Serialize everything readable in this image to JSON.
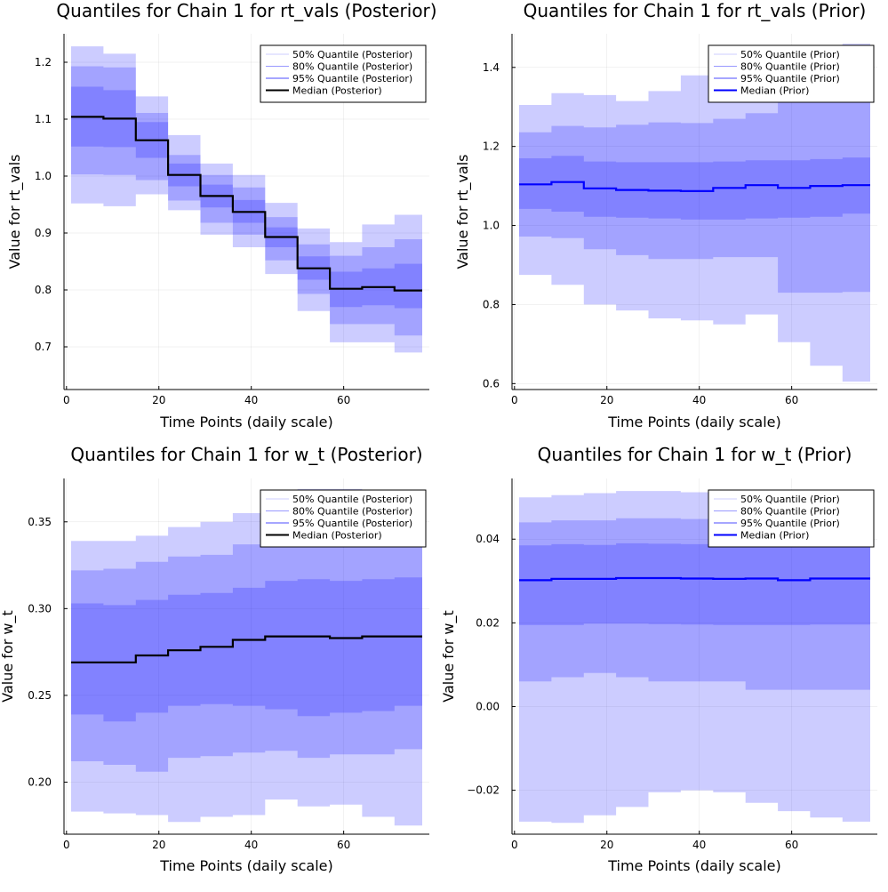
{
  "colors": {
    "band": "#0000ff",
    "band_opacity": 0.2,
    "median_posterior": "#000000",
    "median_prior": "#0000ff",
    "grid": "#e6e6e6"
  },
  "chart_data": [
    {
      "type": "area",
      "title": "Quantiles for Chain 1 for rt_vals (Posterior)",
      "xlabel": "Time Points (daily scale)",
      "ylabel": "Value for rt_vals",
      "xlim": [
        1,
        77
      ],
      "ylim": [
        0.625,
        1.25
      ],
      "xticks": [
        0,
        20,
        40,
        60
      ],
      "xtick_labels": [
        "0",
        "20",
        "40",
        "60"
      ],
      "yticks": [
        0.7,
        0.8,
        0.9,
        1.0,
        1.1,
        1.2
      ],
      "ytick_labels": [
        "0.7",
        "0.8",
        "0.9",
        "1.0",
        "1.1",
        "1.2"
      ],
      "grid": true,
      "legend_position": "top-right",
      "median_color": "#000000",
      "x": [
        1,
        8,
        15,
        22,
        29,
        36,
        43,
        50,
        57,
        64,
        71,
        77
      ],
      "series": [
        {
          "name": "50% Quantile (Posterior)",
          "lower": [
            1.052,
            1.051,
            1.032,
            0.982,
            0.945,
            0.918,
            0.875,
            0.818,
            0.77,
            0.773,
            0.768,
            0.75
          ],
          "upper": [
            1.157,
            1.151,
            1.095,
            1.022,
            0.985,
            0.958,
            0.91,
            0.859,
            0.832,
            0.838,
            0.846,
            0.846
          ]
        },
        {
          "name": "80% Quantile (Posterior)",
          "lower": [
            1.003,
            1.002,
            0.993,
            0.957,
            0.918,
            0.897,
            0.852,
            0.793,
            0.74,
            0.74,
            0.72,
            0.7
          ],
          "upper": [
            1.193,
            1.191,
            1.111,
            1.037,
            1.002,
            0.98,
            0.928,
            0.88,
            0.86,
            0.875,
            0.889,
            0.889
          ]
        },
        {
          "name": "95% Quantile (Posterior)",
          "lower": [
            0.952,
            0.947,
            0.968,
            0.94,
            0.897,
            0.875,
            0.828,
            0.763,
            0.708,
            0.708,
            0.69,
            0.643
          ],
          "upper": [
            1.228,
            1.215,
            1.14,
            1.072,
            1.022,
            1.002,
            0.953,
            0.908,
            0.884,
            0.915,
            0.932,
            0.932
          ]
        }
      ],
      "median": {
        "name": "Median (Posterior)",
        "values": [
          1.104,
          1.101,
          1.063,
          1.002,
          0.965,
          0.937,
          0.893,
          0.838,
          0.802,
          0.805,
          0.799,
          0.799
        ]
      }
    },
    {
      "type": "area",
      "title": "Quantiles for Chain 1 for rt_vals (Prior)",
      "xlabel": "Time Points (daily scale)",
      "ylabel": "Value for rt_vals",
      "xlim": [
        1,
        77
      ],
      "ylim": [
        0.585,
        1.485
      ],
      "xticks": [
        0,
        20,
        40,
        60
      ],
      "xtick_labels": [
        "0",
        "20",
        "40",
        "60"
      ],
      "yticks": [
        0.6,
        0.8,
        1.0,
        1.2,
        1.4
      ],
      "ytick_labels": [
        "0.6",
        "0.8",
        "1.0",
        "1.2",
        "1.4"
      ],
      "grid": true,
      "legend_position": "top-right",
      "median_color": "#0000ff",
      "x": [
        1,
        8,
        15,
        22,
        29,
        36,
        43,
        50,
        57,
        64,
        71,
        77
      ],
      "series": [
        {
          "name": "50% Quantile (Prior)",
          "lower": [
            1.042,
            1.035,
            1.022,
            1.02,
            1.018,
            1.015,
            1.015,
            1.018,
            1.02,
            1.022,
            1.03,
            1.03
          ],
          "upper": [
            1.17,
            1.176,
            1.162,
            1.16,
            1.16,
            1.16,
            1.162,
            1.165,
            1.165,
            1.168,
            1.172,
            1.172
          ]
        },
        {
          "name": "80% Quantile (Prior)",
          "lower": [
            0.972,
            0.968,
            0.94,
            0.925,
            0.915,
            0.915,
            0.92,
            0.92,
            0.83,
            0.83,
            0.832,
            0.832
          ]
        },
        {
          "name": "95% Quantile (Prior)",
          "lower": [
            0.875,
            0.85,
            0.8,
            0.785,
            0.765,
            0.76,
            0.75,
            0.775,
            0.705,
            0.645,
            0.605,
            0.605
          ],
          "upper": [
            1.305,
            1.335,
            1.33,
            1.315,
            1.34,
            1.38,
            1.39,
            1.405,
            1.44,
            1.44,
            1.46,
            1.46
          ]
        }
      ],
      "median": {
        "name": "Median (Prior)",
        "values": [
          1.104,
          1.11,
          1.094,
          1.09,
          1.088,
          1.087,
          1.095,
          1.102,
          1.095,
          1.1,
          1.102,
          1.102
        ]
      }
    },
    {
      "type": "area",
      "title": "Quantiles for Chain 1 for w_t (Posterior)",
      "xlabel": "Time Points (daily scale)",
      "ylabel": "Value for w_t",
      "xlim": [
        1,
        77
      ],
      "ylim": [
        0.17,
        0.375
      ],
      "xticks": [
        0,
        20,
        40,
        60
      ],
      "xtick_labels": [
        "0",
        "20",
        "40",
        "60"
      ],
      "yticks": [
        0.2,
        0.25,
        0.3,
        0.35
      ],
      "ytick_labels": [
        "0.20",
        "0.25",
        "0.30",
        "0.35"
      ],
      "grid": true,
      "legend_position": "top-right",
      "median_color": "#000000",
      "x": [
        1,
        8,
        15,
        22,
        29,
        36,
        43,
        50,
        57,
        64,
        71,
        77
      ],
      "series": [
        {
          "name": "50% Quantile (Posterior)",
          "lower": [
            0.239,
            0.235,
            0.24,
            0.244,
            0.245,
            0.244,
            0.242,
            0.238,
            0.24,
            0.241,
            0.244,
            0.244
          ],
          "upper": [
            0.303,
            0.302,
            0.305,
            0.308,
            0.309,
            0.312,
            0.316,
            0.317,
            0.316,
            0.317,
            0.318,
            0.318
          ]
        },
        {
          "name": "80% Quantile (Posterior)",
          "lower": [
            0.212,
            0.21,
            0.206,
            0.214,
            0.215,
            0.217,
            0.218,
            0.214,
            0.216,
            0.216,
            0.219,
            0.219
          ],
          "upper": [
            0.322,
            0.323,
            0.327,
            0.33,
            0.331,
            0.337,
            0.342,
            0.345,
            0.343,
            0.34,
            0.338,
            0.338
          ]
        },
        {
          "name": "95% Quantile (Posterior)",
          "lower": [
            0.183,
            0.182,
            0.181,
            0.177,
            0.18,
            0.181,
            0.19,
            0.186,
            0.187,
            0.18,
            0.175,
            0.175
          ],
          "upper": [
            0.339,
            0.339,
            0.342,
            0.347,
            0.35,
            0.355,
            0.362,
            0.369,
            0.369,
            0.365,
            0.362,
            0.362
          ]
        }
      ],
      "median": {
        "name": "Median (Posterior)",
        "values": [
          0.269,
          0.269,
          0.273,
          0.276,
          0.278,
          0.282,
          0.284,
          0.284,
          0.283,
          0.284,
          0.284,
          0.284
        ]
      }
    },
    {
      "type": "area",
      "title": "Quantiles for Chain 1 for w_t (Prior)",
      "xlabel": "Time Points (daily scale)",
      "ylabel": "Value for w_t",
      "xlim": [
        1,
        77
      ],
      "ylim": [
        -0.0305,
        0.0545
      ],
      "xticks": [
        0,
        20,
        40,
        60
      ],
      "xtick_labels": [
        "0",
        "20",
        "40",
        "60"
      ],
      "yticks": [
        -0.02,
        0.0,
        0.02,
        0.04
      ],
      "ytick_labels": [
        "−0.02",
        "0.00",
        "0.02",
        "0.04"
      ],
      "grid": true,
      "legend_position": "top-right",
      "median_color": "#0000ff",
      "x": [
        1,
        8,
        15,
        22,
        29,
        36,
        43,
        50,
        57,
        64,
        71,
        77
      ],
      "series": [
        {
          "name": "50% Quantile (Prior)",
          "lower": [
            0.0195,
            0.0195,
            0.0198,
            0.0198,
            0.0197,
            0.0196,
            0.0195,
            0.0195,
            0.0195,
            0.0196,
            0.0196,
            0.0196
          ],
          "upper": [
            0.0385,
            0.0388,
            0.0386,
            0.039,
            0.0389,
            0.0388,
            0.0386,
            0.0386,
            0.0386,
            0.0385,
            0.0385,
            0.0385
          ]
        },
        {
          "name": "80% Quantile (Prior)",
          "lower": [
            0.006,
            0.007,
            0.008,
            0.007,
            0.006,
            0.006,
            0.006,
            0.004,
            0.004,
            0.004,
            0.004,
            0.004
          ],
          "upper": [
            0.044,
            0.0445,
            0.0445,
            0.045,
            0.045,
            0.0448,
            0.0446,
            0.0445,
            0.0443,
            0.0443,
            0.0443,
            0.0443
          ]
        },
        {
          "name": "95% Quantile (Prior)",
          "lower": [
            -0.0275,
            -0.0278,
            -0.026,
            -0.024,
            -0.0205,
            -0.02,
            -0.0205,
            -0.023,
            -0.025,
            -0.0265,
            -0.0275,
            -0.0275
          ],
          "upper": [
            0.05,
            0.0505,
            0.051,
            0.0515,
            0.0515,
            0.0512,
            0.051,
            0.0508,
            0.0508,
            0.0508,
            0.0505,
            0.0505
          ]
        }
      ],
      "median": {
        "name": "Median (Prior)",
        "values": [
          0.0302,
          0.0305,
          0.0305,
          0.0307,
          0.0307,
          0.0306,
          0.0305,
          0.0306,
          0.0302,
          0.0306,
          0.0306,
          0.0306
        ]
      }
    }
  ]
}
